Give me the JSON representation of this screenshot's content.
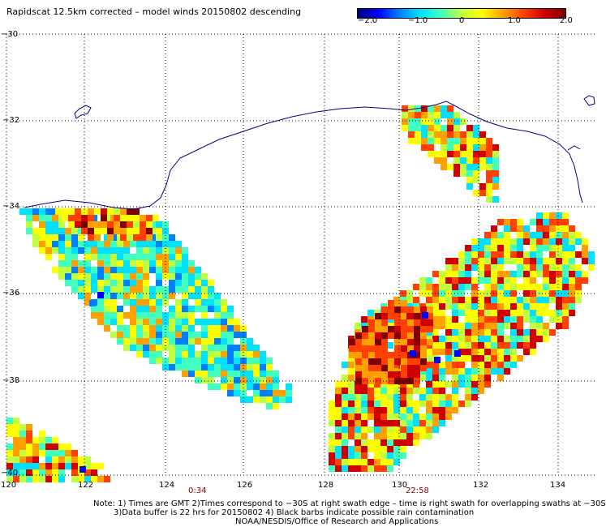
{
  "title": "Rapidscat 12.5km corrected – model winds 20150802 descending",
  "colorbar": {
    "ticks": [
      "−2.0",
      "−1.0",
      "0",
      "1.0",
      "2.0"
    ],
    "colors": [
      "#00007f",
      "#0000ff",
      "#0080ff",
      "#00e0ff",
      "#40ffbf",
      "#c0ff40",
      "#ffff00",
      "#ffa000",
      "#ff4000",
      "#d00000",
      "#7f0000"
    ]
  },
  "lat_labels": [
    "−30",
    "−32",
    "−34",
    "−36",
    "−38",
    "−40"
  ],
  "lon_labels": [
    "120",
    "122",
    "124",
    "126",
    "128",
    "130",
    "132",
    "134"
  ],
  "time_labels": [
    "0:34",
    "22:58"
  ],
  "notes": [
    "Note: 1) Times are GMT 2)Times correspond to −30S at right swath edge – time is right swath for overlapping swaths at −30S",
    "3)Data buffer is 22 hrs for 20150802 4) Black barbs indicate possible rain contamination",
    "NOAA/NESDIS/Office of Research and Applications"
  ]
}
